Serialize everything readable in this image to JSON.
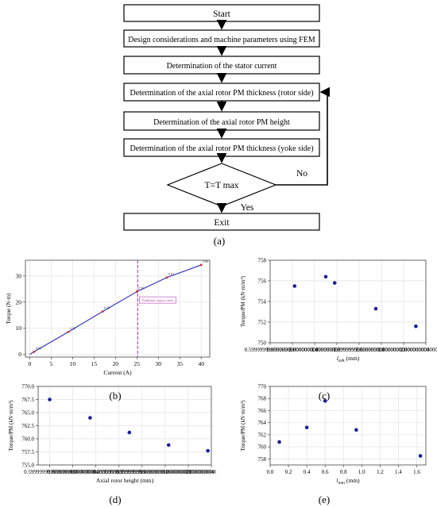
{
  "flowchart": {
    "steps": [
      "Start",
      "Design considerations and machine parameters using FEM",
      "Determination of the stator current",
      "Determination of the axial rotor PM thickness (rotor side)",
      "Determination of the axial rotor PM height",
      "Determination of the axial rotor PM thickness (yoke side)"
    ],
    "decision": "T=T max",
    "no_label": "No",
    "yes_label": "Yes",
    "exit": "Exit",
    "caption": "(a)"
  },
  "chart_data": [
    {
      "id": "b",
      "type": "line",
      "caption": "(b)",
      "xlabel": "Current (A)",
      "ylabel": "Torque (N·m)",
      "xlim": [
        -1,
        42
      ],
      "ylim": [
        -1,
        36
      ],
      "xticks": [
        0,
        5,
        10,
        15,
        20,
        25,
        30,
        35,
        40
      ],
      "yticks": [
        0,
        10,
        20,
        30
      ],
      "grid": true,
      "series": [
        {
          "x": [
            0,
            1,
            9,
            17,
            25,
            32,
            40
          ],
          "y": [
            0,
            1.0,
            8.6,
            16.4,
            24.0,
            29.4,
            34.2
          ],
          "color": "#2b2bbf"
        }
      ],
      "points": [
        {
          "x": 1,
          "y": 1.0,
          "label": "0.99"
        },
        {
          "x": 9,
          "y": 8.6,
          "label": "0.95"
        },
        {
          "x": 17,
          "y": 16.4,
          "label": "0.96"
        },
        {
          "x": 25,
          "y": 24.0,
          "label": "0.96"
        },
        {
          "x": 32,
          "y": 29.4,
          "label": "0.92"
        },
        {
          "x": 40,
          "y": 34.2,
          "label": "0.86"
        }
      ],
      "vline": {
        "x": 25.2,
        "color": "#b23bb2",
        "label": "Nonlinear region starts"
      },
      "point_color": "#d62728"
    },
    {
      "id": "c",
      "type": "scatter",
      "caption": "(c)",
      "xlabel": "l_mR (mm)",
      "xlabel_main": "l",
      "xlabel_sub": "mR",
      "xlabel_unit": " (mm)",
      "ylabel": "Torque/PM (kN·m/m³)",
      "xlim": [
        0.6,
        2.0
      ],
      "ylim": [
        750,
        758
      ],
      "xticks": [
        0.6,
        0.8,
        1.0,
        1.2,
        1.4,
        1.6,
        1.8,
        2.0
      ],
      "yticks": [
        750,
        752,
        754,
        756,
        758
      ],
      "grid": true,
      "points": [
        {
          "x": 0.82,
          "y": 755.5
        },
        {
          "x": 1.1,
          "y": 756.4
        },
        {
          "x": 1.18,
          "y": 755.8
        },
        {
          "x": 1.55,
          "y": 753.3
        },
        {
          "x": 1.91,
          "y": 751.6
        }
      ],
      "color": "#1c1c9e"
    },
    {
      "id": "d",
      "type": "scatter",
      "caption": "(d)",
      "xlabel": "Axial rotor height (mm)",
      "ylabel": "Torque/PM (kN·m/m³)",
      "xlim": [
        0.5,
        2.0
      ],
      "ylim": [
        755.0,
        770.0
      ],
      "xticks": [
        0.6,
        0.8,
        1.0,
        1.2,
        1.4,
        1.6,
        1.8,
        2.0
      ],
      "yticks": [
        755.0,
        757.5,
        760.0,
        762.5,
        765.0,
        767.5,
        770.0
      ],
      "grid": true,
      "points": [
        {
          "x": 0.6,
          "y": 767.5
        },
        {
          "x": 0.95,
          "y": 764.0
        },
        {
          "x": 1.29,
          "y": 761.2
        },
        {
          "x": 1.63,
          "y": 758.8
        },
        {
          "x": 1.97,
          "y": 757.7
        }
      ],
      "color": "#1c1c9e"
    },
    {
      "id": "e",
      "type": "scatter",
      "caption": "(e)",
      "xlabel": "l_mm (mm)",
      "xlabel_main": "l",
      "xlabel_sub": "mm",
      "xlabel_unit": " (mm)",
      "ylabel": "Torque/PM (kN·m/m³)",
      "xlim": [
        0,
        1.7
      ],
      "ylim": [
        757,
        770
      ],
      "xticks": [
        0.0,
        0.2,
        0.4,
        0.6,
        0.8,
        1.0,
        1.2,
        1.4,
        1.6
      ],
      "yticks": [
        758,
        760,
        762,
        764,
        766,
        768,
        770
      ],
      "grid": true,
      "points": [
        {
          "x": 0.1,
          "y": 760.8
        },
        {
          "x": 0.4,
          "y": 763.2
        },
        {
          "x": 0.6,
          "y": 767.6
        },
        {
          "x": 0.94,
          "y": 762.8
        },
        {
          "x": 1.64,
          "y": 758.5
        }
      ],
      "color": "#1c1c9e"
    }
  ]
}
